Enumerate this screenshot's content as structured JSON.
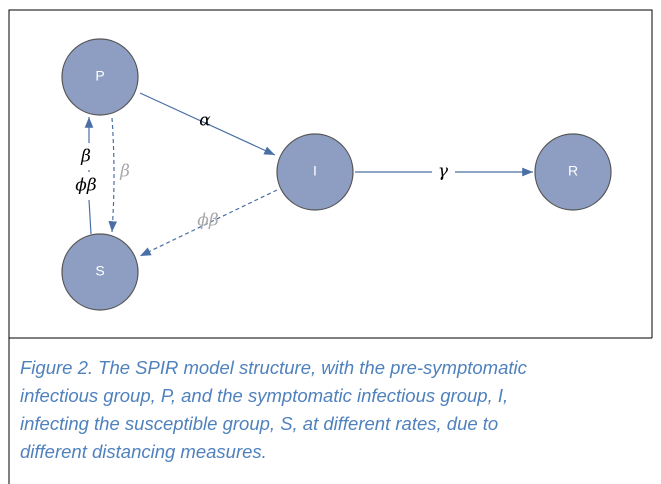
{
  "nodes": [
    {
      "label": "P"
    },
    {
      "label": "I"
    },
    {
      "label": "R"
    },
    {
      "label": "S"
    }
  ],
  "edges": [
    {
      "label": "α"
    },
    {
      "label": "γ"
    },
    {
      "label": "β"
    },
    {
      "label": "ϕβ"
    },
    {
      "label": "β"
    },
    {
      "label": "ϕβ"
    }
  ],
  "caption": [
    "Figure 2.  The SPIR model structure, with the pre-symptomatic",
    "infectious group, P, and the symptomatic infectious group, I,",
    "infecting the susceptible group, S, at different rates, due to",
    "different distancing measures."
  ]
}
